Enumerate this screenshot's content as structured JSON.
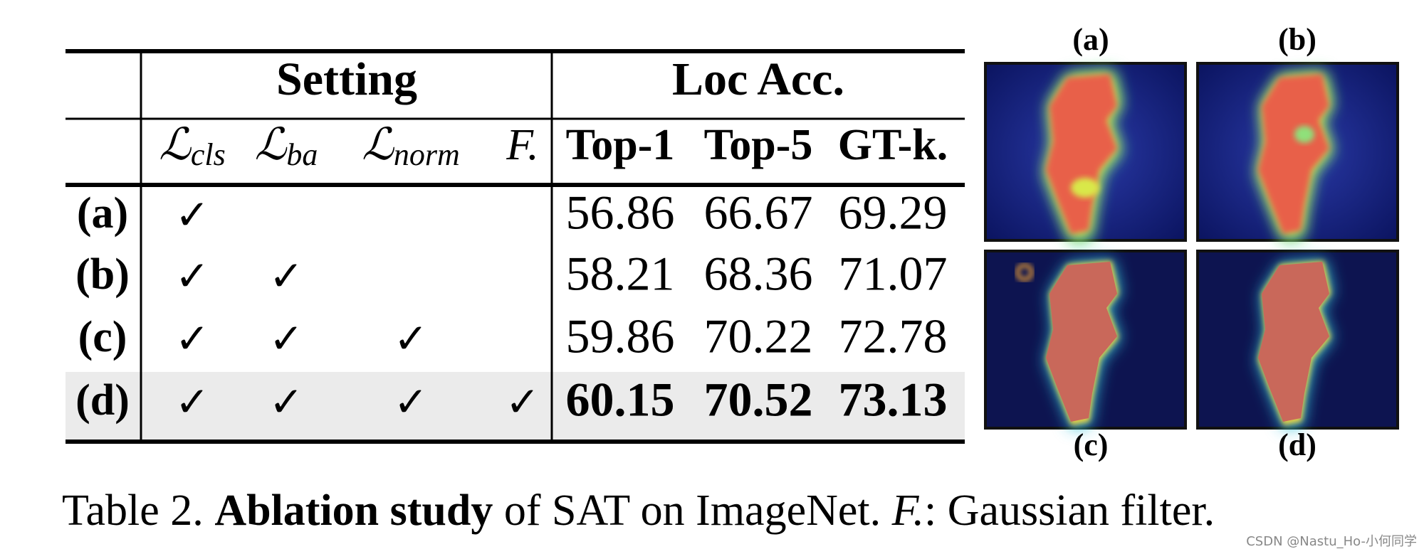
{
  "table": {
    "group_headers": [
      "Setting",
      "Loc Acc."
    ],
    "columns": [
      {
        "symbol": "ℒ",
        "sub": "cls"
      },
      {
        "symbol": "ℒ",
        "sub": "ba"
      },
      {
        "symbol": "ℒ",
        "sub": "norm"
      },
      {
        "symbol": "F."
      },
      {
        "symbol": "Top-1"
      },
      {
        "symbol": "Top-5"
      },
      {
        "symbol": "GT-k."
      }
    ],
    "rows": [
      {
        "label": "(a)",
        "checks": [
          "✓",
          null,
          null,
          null
        ],
        "values": [
          56.86,
          66.67,
          69.29
        ],
        "bold": false,
        "shaded": false
      },
      {
        "label": "(b)",
        "checks": [
          "✓",
          "✓",
          null,
          null
        ],
        "values": [
          58.21,
          68.36,
          71.07
        ],
        "bold": false,
        "shaded": false
      },
      {
        "label": "(c)",
        "checks": [
          "✓",
          "✓",
          "✓",
          null
        ],
        "values": [
          59.86,
          70.22,
          72.78
        ],
        "bold": false,
        "shaded": false
      },
      {
        "label": "(d)",
        "checks": [
          "✓",
          "✓",
          "✓",
          "✓"
        ],
        "values": [
          60.15,
          70.52,
          73.13
        ],
        "bold": true,
        "shaded": true
      }
    ]
  },
  "figure": {
    "panels": [
      "(a)",
      "(b)",
      "(c)",
      "(d)"
    ]
  },
  "caption": {
    "label": "Table 2.",
    "bold": "Ablation study",
    "text1": " of SAT on ImageNet. ",
    "italic": "F.",
    "text2": ": Gaussian filter."
  },
  "watermark": "CSDN @Nastu_Ho-小何同学"
}
